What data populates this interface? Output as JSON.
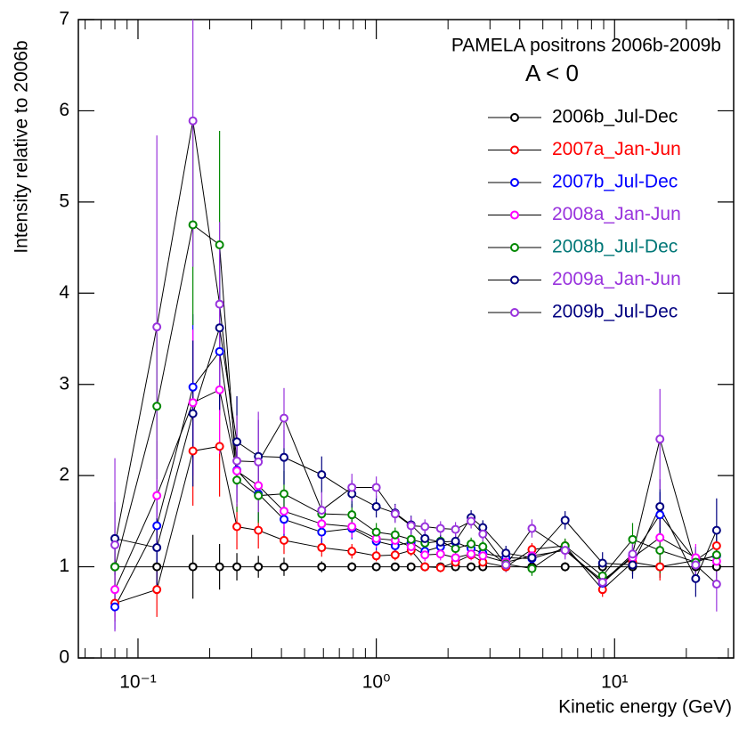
{
  "chart_data": {
    "type": "scatter",
    "title": "PAMELA positrons 2006b-2009b",
    "subtitle": "A < 0",
    "x_label": "Kinetic energy (GeV)",
    "y_label": "Intensity relative to 2006b",
    "x_log": true,
    "xlim": [
      0.0562,
      31.6
    ],
    "ylim": [
      0,
      7
    ],
    "xticks": [
      {
        "value": 0.1,
        "label": "10⁻¹"
      },
      {
        "value": 1,
        "label": "10⁰"
      },
      {
        "value": 10,
        "label": "10¹"
      }
    ],
    "xminor_ticks": [
      0.06,
      0.07,
      0.08,
      0.09,
      0.2,
      0.3,
      0.4,
      0.5,
      0.6,
      0.7,
      0.8,
      0.9,
      2,
      3,
      4,
      5,
      6,
      7,
      8,
      9,
      20,
      30
    ],
    "yticks": [
      0,
      1,
      2,
      3,
      4,
      5,
      6,
      7
    ],
    "line_color": "#000000",
    "legend": "upper right",
    "x": [
      0.08,
      0.12,
      0.17,
      0.22,
      0.26,
      0.32,
      0.41,
      0.59,
      0.79,
      1.0,
      1.2,
      1.4,
      1.6,
      1.86,
      2.15,
      2.5,
      2.8,
      3.5,
      4.5,
      6.2,
      8.9,
      11.9,
      15.5,
      21.9,
      26.8
    ],
    "series": [
      {
        "name": "2006b_Jul-Dec",
        "color": "#000000",
        "label_color": "#000000",
        "values": [
          1,
          1,
          1,
          1,
          1,
          1,
          1,
          1,
          1,
          1,
          1,
          1,
          1,
          1,
          1,
          1,
          1,
          1,
          1,
          1,
          1,
          1,
          1,
          1,
          1
        ],
        "errors": [
          0.3,
          0.3,
          0.35,
          0.25,
          0.15,
          0.12,
          0.1,
          0.06,
          0.05,
          0.04,
          0.04,
          0.04,
          0.04,
          0.04,
          0.04,
          0.04,
          0.04,
          0.04,
          0.05,
          0.05,
          0.06,
          0.08,
          0.12,
          0.1,
          0.15
        ]
      },
      {
        "name": "2007a_Jan-Jun",
        "color": "#ff0000",
        "label_color": "#ff0000",
        "values": [
          0.6,
          0.75,
          2.27,
          2.32,
          1.44,
          1.4,
          1.29,
          1.21,
          1.17,
          1.12,
          1.13,
          1.18,
          1.0,
          0.99,
          1.05,
          1.13,
          1.05,
          1.0,
          1.19,
          1.23,
          0.75,
          1.05,
          1.0,
          1.07,
          1.23
        ],
        "errors": [
          0.2,
          0.3,
          0.6,
          0.55,
          0.25,
          0.2,
          0.15,
          0.1,
          0.08,
          0.06,
          0.06,
          0.06,
          0.05,
          0.05,
          0.05,
          0.05,
          0.05,
          0.05,
          0.07,
          0.07,
          0.08,
          0.1,
          0.15,
          0.12,
          0.2
        ]
      },
      {
        "name": "2007b_Jul-Dec",
        "color": "#0000ff",
        "label_color": "#0000ff",
        "values": [
          0.56,
          1.45,
          2.97,
          3.36,
          2.06,
          1.8,
          1.52,
          1.38,
          1.42,
          1.28,
          1.23,
          1.27,
          1.17,
          1.22,
          1.27,
          1.2,
          1.15,
          1.1,
          1.09,
          1.2,
          0.82,
          1.12,
          1.57,
          1.07,
          1.12
        ],
        "errors": [
          0.25,
          0.5,
          0.8,
          0.7,
          0.35,
          0.3,
          0.25,
          0.15,
          0.12,
          0.1,
          0.08,
          0.08,
          0.07,
          0.07,
          0.07,
          0.07,
          0.07,
          0.07,
          0.08,
          0.08,
          0.1,
          0.12,
          0.25,
          0.15,
          0.25
        ]
      },
      {
        "name": "2008a_Jan-Jun",
        "color": "#ff00ff",
        "label_color": "#9933dd",
        "values": [
          0.75,
          1.78,
          2.8,
          2.94,
          2.05,
          1.89,
          1.61,
          1.47,
          1.44,
          1.31,
          1.29,
          1.22,
          1.13,
          1.14,
          1.1,
          1.14,
          1.12,
          1.05,
          1.12,
          1.18,
          0.85,
          1.1,
          1.32,
          1.1,
          1.06
        ],
        "errors": [
          0.3,
          0.6,
          0.8,
          0.7,
          0.35,
          0.3,
          0.25,
          0.15,
          0.12,
          0.1,
          0.08,
          0.08,
          0.07,
          0.07,
          0.07,
          0.07,
          0.07,
          0.07,
          0.08,
          0.08,
          0.1,
          0.12,
          0.25,
          0.15,
          0.25
        ]
      },
      {
        "name": "2008b_Jul-Dec",
        "color": "#008800",
        "label_color": "#007777",
        "values": [
          1.0,
          2.76,
          4.75,
          4.53,
          1.95,
          1.78,
          1.8,
          1.58,
          1.57,
          1.38,
          1.35,
          1.3,
          1.26,
          1.28,
          1.2,
          1.25,
          1.22,
          1.03,
          0.98,
          1.23,
          0.9,
          1.3,
          1.18,
          1.05,
          1.13
        ],
        "errors": [
          0.35,
          0.8,
          1.1,
          1.25,
          0.35,
          0.3,
          0.25,
          0.15,
          0.12,
          0.1,
          0.08,
          0.08,
          0.07,
          0.07,
          0.07,
          0.07,
          0.07,
          0.07,
          0.08,
          0.08,
          0.1,
          0.18,
          0.25,
          0.15,
          0.25
        ]
      },
      {
        "name": "2009a_Jan-Jun",
        "color": "#000080",
        "label_color": "#9933dd",
        "values": [
          1.31,
          1.21,
          2.68,
          3.62,
          2.37,
          2.21,
          2.2,
          2.01,
          1.8,
          1.66,
          1.59,
          1.46,
          1.31,
          1.27,
          1.28,
          1.54,
          1.43,
          1.15,
          1.1,
          1.51,
          1.04,
          1.02,
          1.66,
          0.87,
          1.4
        ],
        "errors": [
          0.4,
          0.5,
          0.8,
          0.9,
          0.5,
          0.4,
          0.3,
          0.2,
          0.15,
          0.12,
          0.1,
          0.1,
          0.08,
          0.08,
          0.08,
          0.08,
          0.08,
          0.08,
          0.1,
          0.1,
          0.12,
          0.15,
          0.3,
          0.2,
          0.35
        ]
      },
      {
        "name": "2009b_Jul-Dec",
        "color": "#9933dd",
        "label_color": "#000080",
        "values": [
          1.24,
          3.63,
          5.89,
          3.88,
          2.16,
          2.15,
          2.63,
          1.62,
          1.87,
          1.87,
          1.58,
          1.45,
          1.44,
          1.42,
          1.41,
          1.5,
          1.36,
          1.02,
          1.42,
          1.18,
          0.83,
          1.14,
          2.4,
          1.02,
          0.81
        ],
        "errors": [
          0.95,
          2.1,
          1.6,
          0.9,
          0.5,
          0.55,
          0.33,
          0.2,
          0.15,
          0.12,
          0.1,
          0.1,
          0.08,
          0.08,
          0.08,
          0.08,
          0.08,
          0.08,
          0.1,
          0.1,
          0.12,
          0.15,
          0.55,
          0.2,
          0.3
        ]
      }
    ]
  }
}
